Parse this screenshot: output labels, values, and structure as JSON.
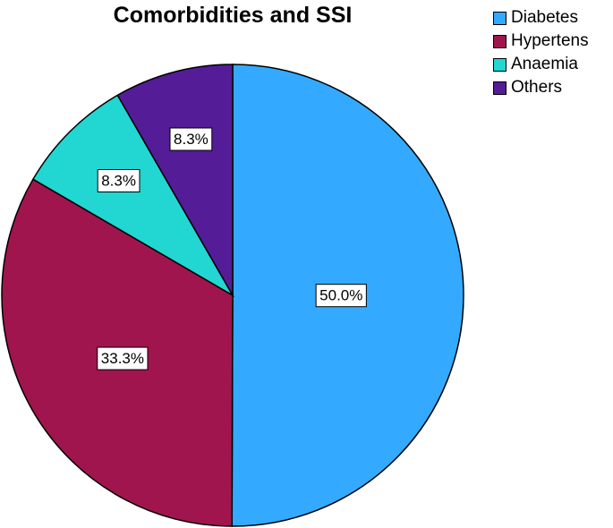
{
  "chart_data": {
    "type": "pie",
    "title": "Comorbidities and SSI",
    "legend_position": "top-right",
    "categories": [
      "Diabetes",
      "Hypertens",
      "Anaemia",
      "Others"
    ],
    "values": [
      50.0,
      33.3,
      8.3,
      8.3
    ],
    "labels": [
      "50.0%",
      "33.3%",
      "8.3%",
      "8.3%"
    ],
    "colors": [
      "#33AAFF",
      "#A0154D",
      "#22D6D2",
      "#541C96"
    ]
  }
}
